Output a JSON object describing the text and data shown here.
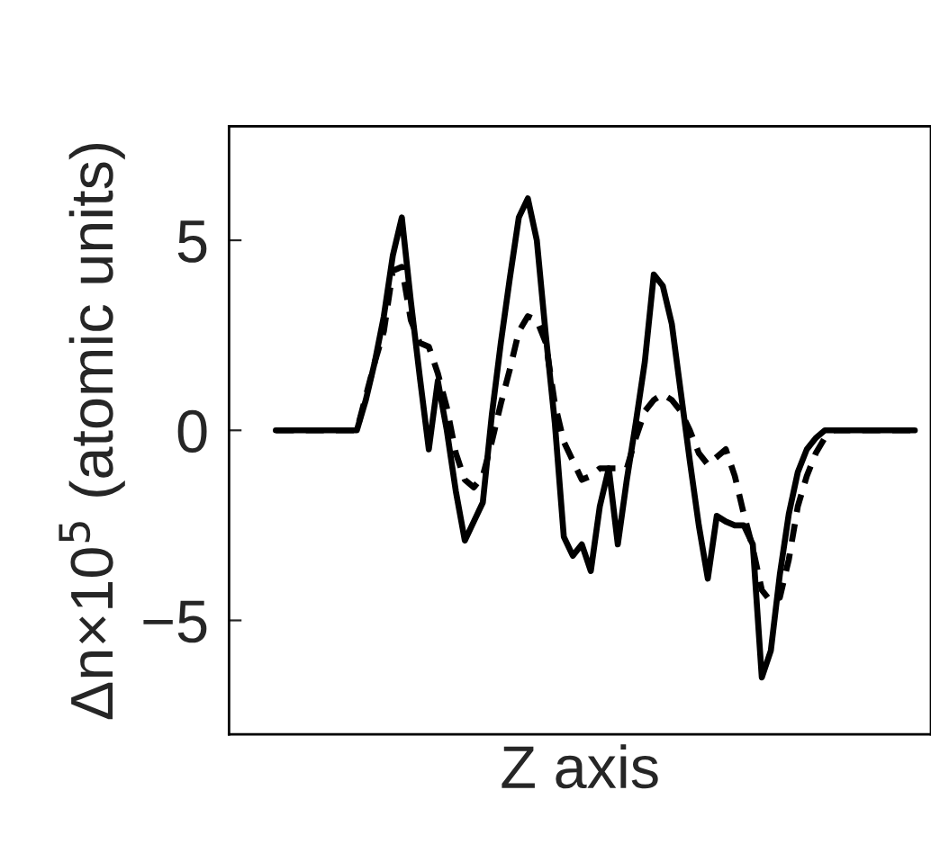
{
  "chart_data": {
    "type": "line",
    "xlabel": "Z axis",
    "ylabel": "Δn×10$^{5}$ (atomic units)",
    "categories": [
      null,
      null,
      null,
      null,
      null,
      null,
      null,
      null,
      null,
      null,
      null,
      null,
      null,
      null,
      null,
      null,
      null,
      null,
      null,
      null,
      null,
      null,
      null,
      null,
      null,
      null,
      null,
      null,
      null,
      null,
      null,
      null,
      null,
      null,
      null,
      null,
      null,
      null,
      null,
      null,
      null,
      null,
      null,
      null,
      null,
      null,
      null,
      null,
      null,
      null,
      null,
      null,
      null,
      null,
      null,
      null,
      null,
      null,
      null,
      null,
      null,
      null,
      null,
      null,
      null,
      null,
      null,
      null,
      null,
      null,
      null,
      null
    ],
    "series": [
      {
        "color": "#000000",
        "line_style": "solid",
        "values": [
          0,
          0,
          0,
          0,
          0,
          0,
          0,
          0,
          0,
          0,
          0.8,
          1.8,
          3.0,
          4.6,
          5.6,
          3.4,
          1.4,
          -0.5,
          1.3,
          0.0,
          -1.6,
          -2.9,
          -2.4,
          -1.9,
          0.4,
          2.3,
          4.0,
          5.6,
          6.1,
          5.0,
          2.5,
          0.2,
          -2.8,
          -3.3,
          -3.0,
          -3.7,
          -2.0,
          -1.0,
          -3.0,
          -1.3,
          0.2,
          1.8,
          4.1,
          3.8,
          2.8,
          1.0,
          -0.8,
          -2.5,
          -3.9,
          -2.25,
          -2.4,
          -2.5,
          -2.5,
          -3.0,
          -6.5,
          -5.8,
          -3.8,
          -2.2,
          -1.1,
          -0.5,
          -0.2,
          0,
          0,
          0,
          0,
          0,
          0,
          0,
          0,
          0,
          0,
          0
        ]
      },
      {
        "color": "#000000",
        "line_style": "dashed",
        "values": [
          0,
          0,
          0,
          0,
          0,
          0,
          0,
          0,
          0,
          0,
          0.9,
          1.8,
          2.6,
          4.2,
          4.3,
          2.9,
          2.3,
          2.2,
          1.5,
          0.6,
          -0.6,
          -1.3,
          -1.5,
          -1.2,
          -0.3,
          0.7,
          1.6,
          2.6,
          3.0,
          2.9,
          2.3,
          0.7,
          -0.3,
          -0.8,
          -1.3,
          -1.2,
          -1.0,
          -1.0,
          -1.0,
          -1.0,
          -0.2,
          0.5,
          0.8,
          0.95,
          0.8,
          0.5,
          0.0,
          -0.6,
          -0.9,
          -0.7,
          -0.5,
          -1.2,
          -2.2,
          -3.1,
          -4.2,
          -4.5,
          -4.4,
          -3.4,
          -2.0,
          -1.2,
          -0.6,
          -0.2,
          0,
          0,
          0,
          0,
          0,
          0,
          0,
          0,
          0,
          0
        ]
      }
    ],
    "ylim": [
      -8,
      8
    ],
    "yticks": [
      5,
      0,
      {
        "value": -5,
        "label": "−5"
      }
    ],
    "tick_labels": "y",
    "grid": false,
    "legend": false
  }
}
